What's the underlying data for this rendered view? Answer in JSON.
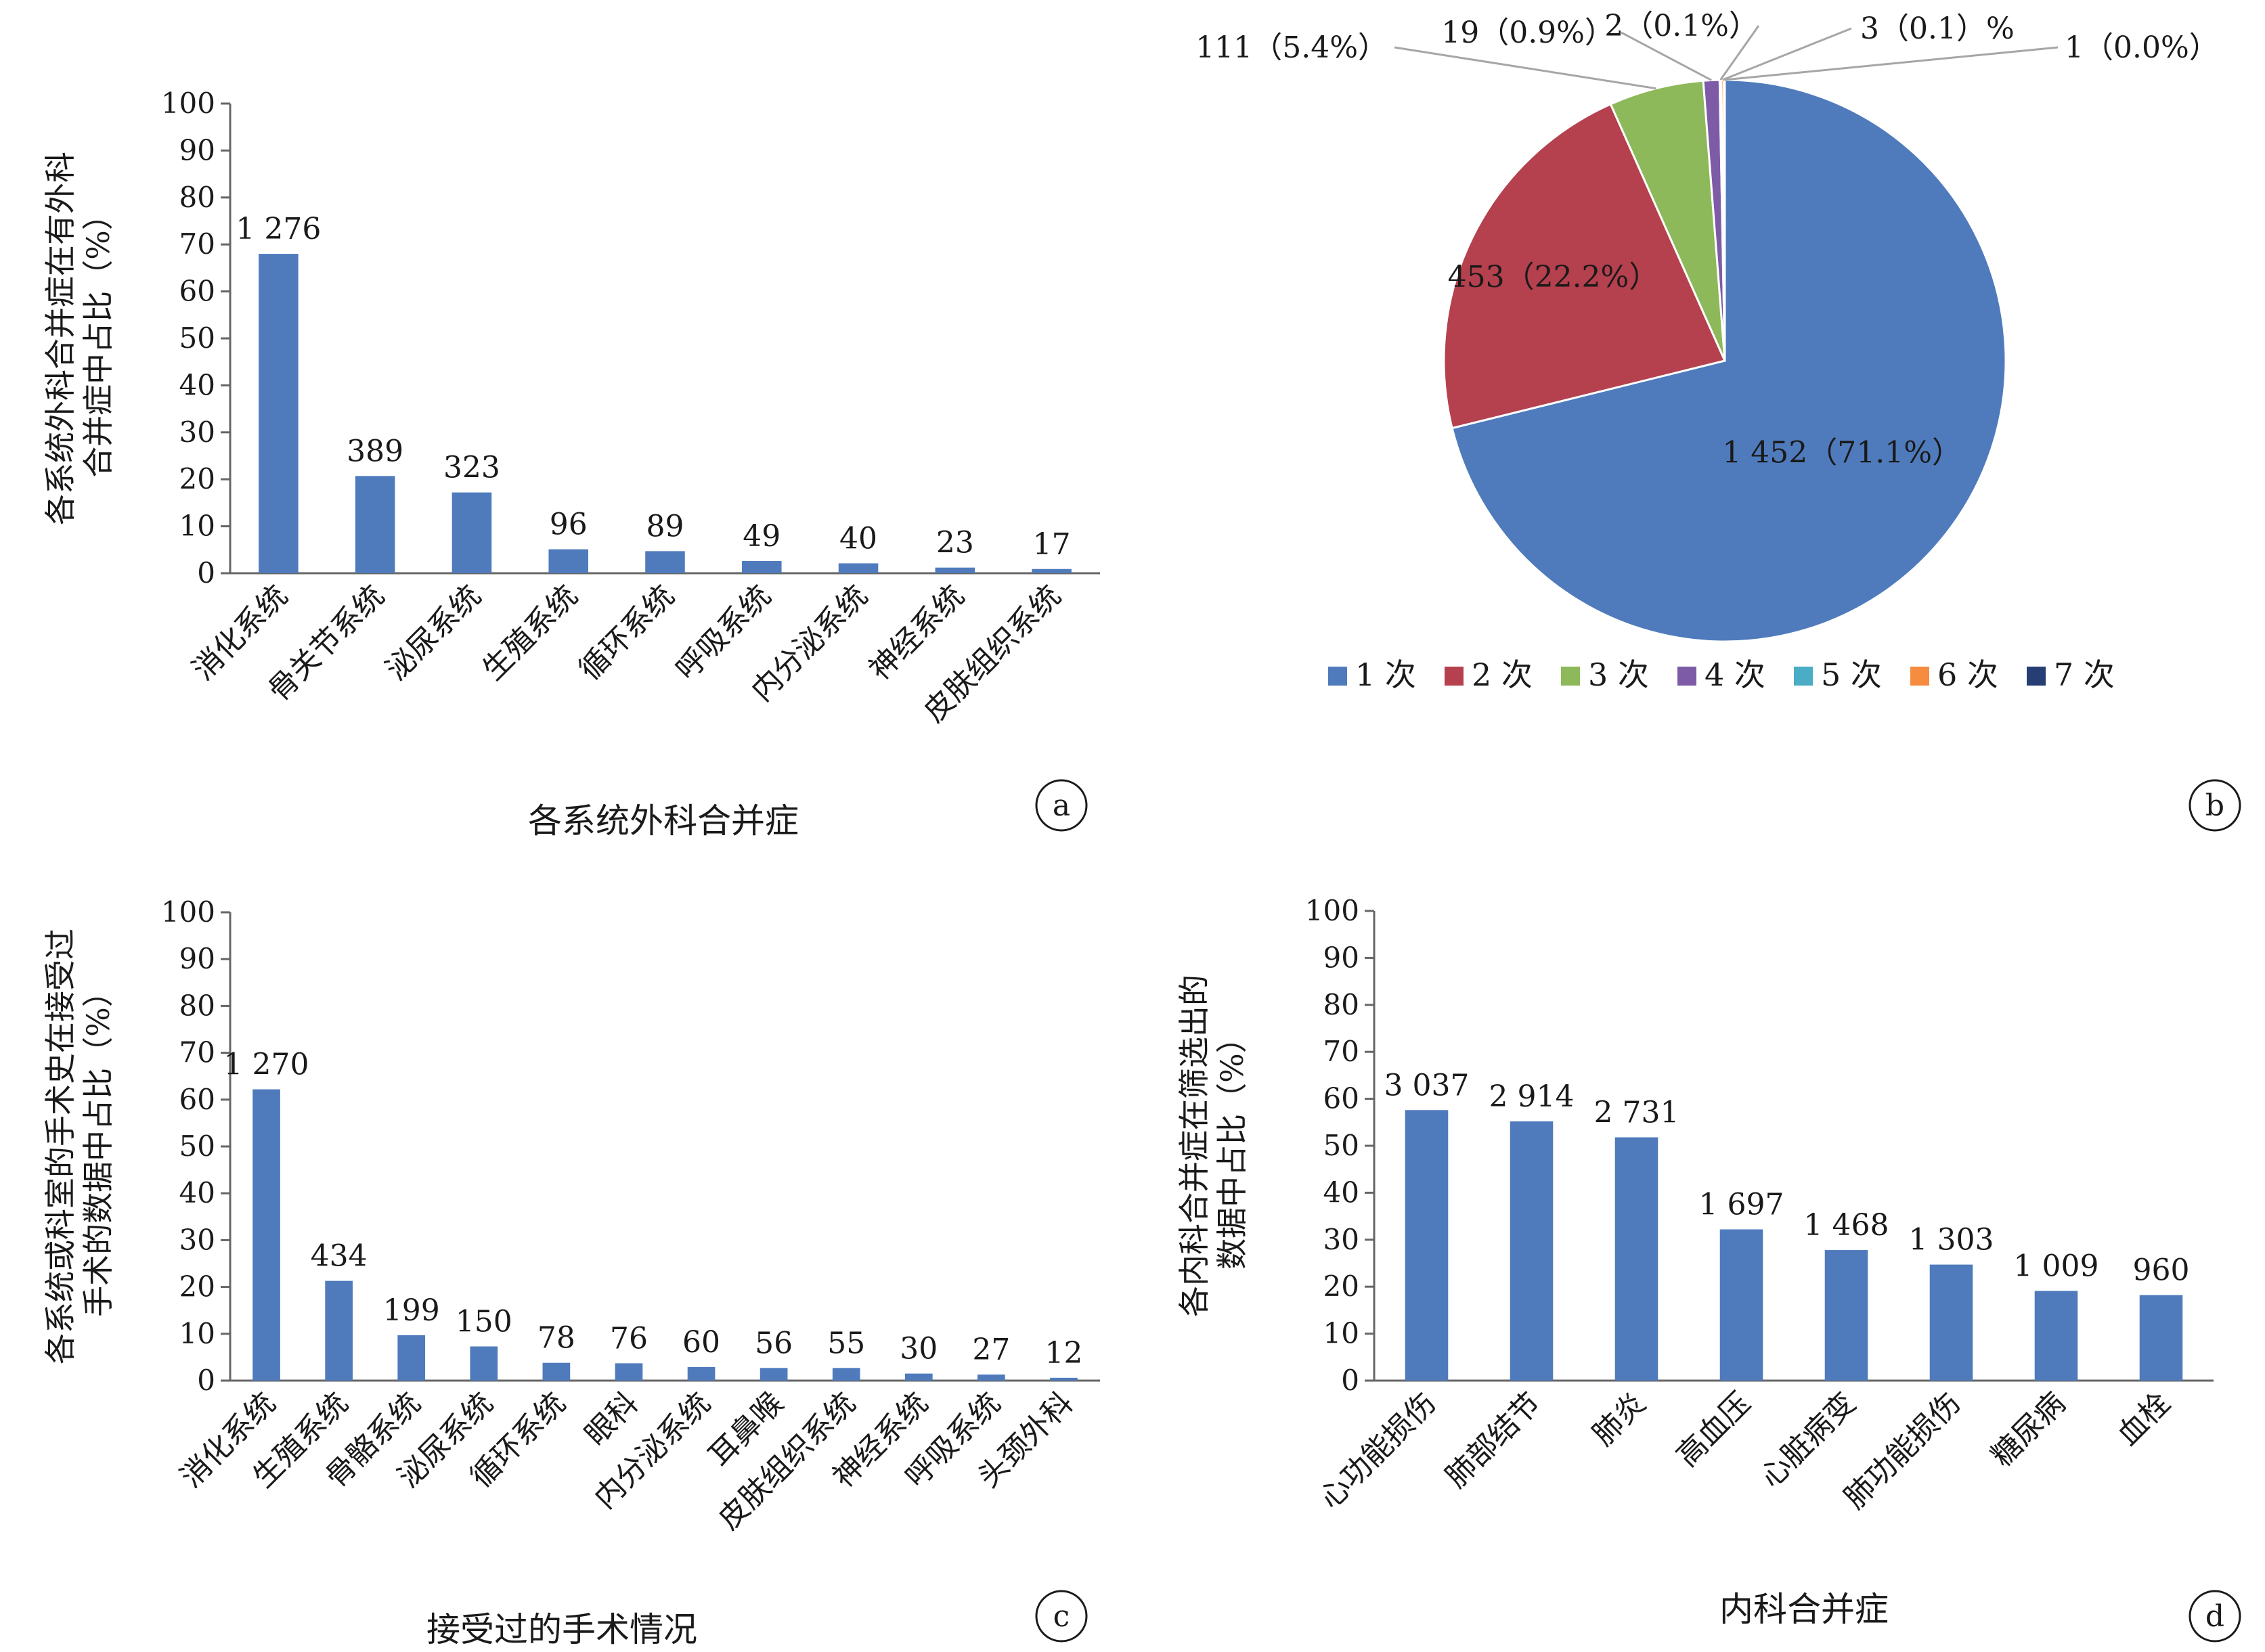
{
  "colors": {
    "bar": "#4f7bbc",
    "axis": "#666666",
    "text": "#1a1a1a",
    "pie": [
      "#4f7bbc",
      "#b5404e",
      "#8db95a",
      "#7e5ba6",
      "#4bacc6",
      "#f58c3f",
      "#263e74"
    ],
    "leader": "#a6a6a6"
  },
  "chart_data": [
    {
      "panel": "a",
      "type": "bar",
      "xlabel": "各系统外科合并症",
      "ylabel": [
        "各系统外科合并症在有外科",
        "合并症中占比（%）"
      ],
      "ylim": [
        0,
        100
      ],
      "yticks": [
        "0",
        "10",
        "20",
        "30",
        "40",
        "50",
        "60",
        "70",
        "80",
        "90",
        "100"
      ],
      "categories": [
        "消化系统",
        "骨关节系统",
        "泌尿系统",
        "生殖系统",
        "循环系统",
        "呼吸系统",
        "内分泌系统",
        "神经系统",
        "皮肤组织系统"
      ],
      "values": [
        68.0,
        20.7,
        17.2,
        5.1,
        4.7,
        2.6,
        2.1,
        1.2,
        0.9
      ],
      "data_labels": [
        "1 276",
        "389",
        "323",
        "96",
        "89",
        "49",
        "40",
        "23",
        "17"
      ]
    },
    {
      "panel": "b",
      "type": "pie",
      "legend_placement": "bottom",
      "categories": [
        "1 次",
        "2 次",
        "3 次",
        "4 次",
        "5 次",
        "6 次",
        "7 次"
      ],
      "values": [
        1452,
        453,
        111,
        19,
        2,
        3,
        1
      ],
      "data_labels": [
        "1 452（71.1%）",
        "453（22.2%）",
        "111（5.4%）",
        "19（0.9%）",
        "2（0.1%）",
        "3（0.1）%",
        "1（0.0%）"
      ]
    },
    {
      "panel": "c",
      "type": "bar",
      "xlabel": "接受过的手术情况",
      "ylabel": [
        "各系统或科室的手术史在接受过",
        "手术的数据中占比（%）"
      ],
      "ylim": [
        0,
        100
      ],
      "yticks": [
        "0",
        "10",
        "20",
        "30",
        "40",
        "50",
        "60",
        "70",
        "80",
        "90",
        "100"
      ],
      "categories": [
        "消化系统",
        "生殖系统",
        "骨骼系统",
        "泌尿系统",
        "循环系统",
        "眼科",
        "内分泌系统",
        "耳鼻喉",
        "皮肤组织系统",
        "神经系统",
        "呼吸系统",
        "头颈外科"
      ],
      "values": [
        62.2,
        21.3,
        9.7,
        7.3,
        3.8,
        3.7,
        2.9,
        2.7,
        2.7,
        1.5,
        1.3,
        0.6
      ],
      "data_labels": [
        "1 270",
        "434",
        "199",
        "150",
        "78",
        "76",
        "60",
        "56",
        "55",
        "30",
        "27",
        "12"
      ]
    },
    {
      "panel": "d",
      "type": "bar",
      "xlabel": "内科合并症",
      "ylabel": [
        "各内科合并症在筛选出的",
        "数据中占比（%）"
      ],
      "ylim": [
        0,
        100
      ],
      "yticks": [
        "0",
        "10",
        "20",
        "30",
        "40",
        "50",
        "60",
        "70",
        "80",
        "90",
        "100"
      ],
      "categories": [
        "心功能损伤",
        "肺部结节",
        "肺炎",
        "高血压",
        "心脏病变",
        "肺功能损伤",
        "糖尿病",
        "血栓"
      ],
      "values": [
        57.6,
        55.2,
        51.8,
        32.2,
        27.8,
        24.7,
        19.1,
        18.2
      ],
      "data_labels": [
        "3 037",
        "2 914",
        "2 731",
        "1 697",
        "1 468",
        "1 303",
        "1 009",
        "960"
      ]
    }
  ]
}
